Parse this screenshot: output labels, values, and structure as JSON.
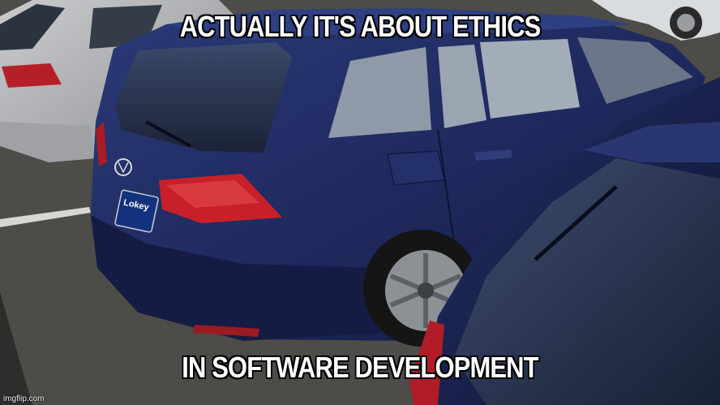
{
  "meme": {
    "top_text": "ACTUALLY IT'S ABOUT ETHICS",
    "bottom_text": "IN SOFTWARE DEVELOPMENT",
    "watermark": "imgflip.com"
  },
  "scene": {
    "plate_text": "Lokey",
    "colors": {
      "asphalt": "#4a4946",
      "navy_car": "#1e2a5a",
      "silver_car": "#a9abad",
      "tail_light": "#c8202a"
    }
  }
}
